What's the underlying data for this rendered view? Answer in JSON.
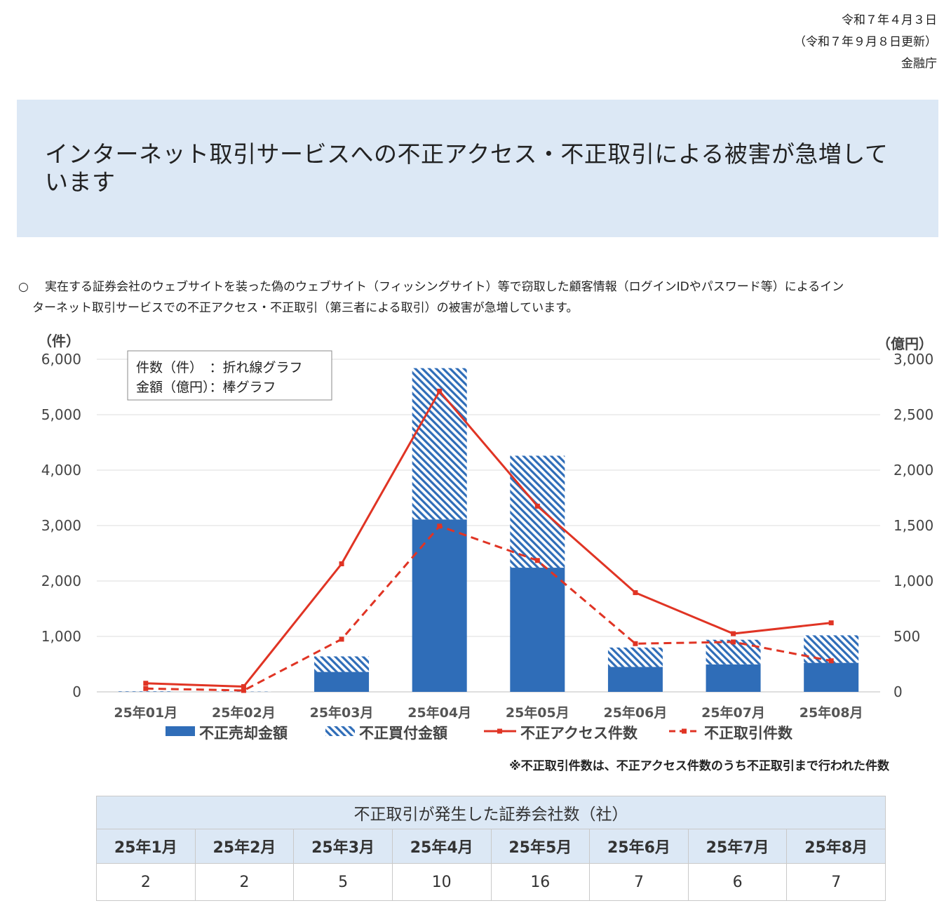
{
  "header": {
    "date": "令和７年４月３日",
    "updated": "（令和７年９月８日更新）",
    "issuer": "金融庁"
  },
  "title": "インターネット取引サービスへの不正アクセス・不正取引による被害が急増しています",
  "bullet": {
    "mark": "○",
    "line1": "実在する証券会社のウェブサイトを装った偽のウェブサイト（フィッシングサイト）等で窃取した顧客情報（ログインIDやパスワード等）によるイン",
    "line2": "ターネット取引サービスでの不正アクセス・不正取引（第三者による取引）の被害が急増しています。"
  },
  "chart_data": {
    "type": "bar+line",
    "categories": [
      "25年01月",
      "25年02月",
      "25年03月",
      "25年04月",
      "25年05月",
      "25年06月",
      "25年07月",
      "25年08月"
    ],
    "left_axis": {
      "unit": "（件）",
      "min": 0,
      "max": 6000,
      "ticks": [
        "0",
        "1,000",
        "2,000",
        "3,000",
        "4,000",
        "5,000",
        "6,000"
      ],
      "tick_values": [
        0,
        1000,
        2000,
        3000,
        4000,
        5000,
        6000
      ]
    },
    "right_axis": {
      "unit": "（億円）",
      "min": 0,
      "max": 3000,
      "ticks": [
        "0",
        "500",
        "1,000",
        "1,500",
        "2,000",
        "2,500",
        "3,000"
      ],
      "tick_values": [
        0,
        500,
        1000,
        1500,
        2000,
        2500,
        3000
      ]
    },
    "legend_box": [
      "件数（件）　：折れ線グラフ",
      "金額（億円）：棒グラフ"
    ],
    "series": [
      {
        "name": "不正売却金額",
        "kind": "bar",
        "axis": "right",
        "color": "#2f6db8",
        "values": [
          2,
          1,
          180,
          1555,
          1120,
          225,
          248,
          262
        ]
      },
      {
        "name": "不正買付金額",
        "kind": "bar-hatched",
        "axis": "right",
        "color": "#2f6db8",
        "values": [
          3,
          2,
          140,
          1365,
          1010,
          175,
          222,
          248
        ]
      },
      {
        "name": "不正アクセス件数",
        "kind": "line",
        "axis": "left",
        "color": "#e03424",
        "values": [
          155,
          95,
          2310,
          5425,
          3350,
          1790,
          1050,
          1245
        ]
      },
      {
        "name": "不正取引件数",
        "kind": "line-dashed",
        "axis": "left",
        "color": "#e03424",
        "values": [
          60,
          25,
          950,
          2990,
          2370,
          870,
          900,
          560
        ]
      }
    ]
  },
  "note": "※不正取引件数は、不正アクセス件数のうち不正取引まで行われた件数",
  "companies": {
    "caption": "不正取引が発生した証券会社数（社）",
    "months": [
      "25年1月",
      "25年2月",
      "25年3月",
      "25年4月",
      "25年5月",
      "25年6月",
      "25年7月",
      "25年8月"
    ],
    "counts": [
      "2",
      "2",
      "5",
      "10",
      "16",
      "7",
      "6",
      "7"
    ]
  }
}
